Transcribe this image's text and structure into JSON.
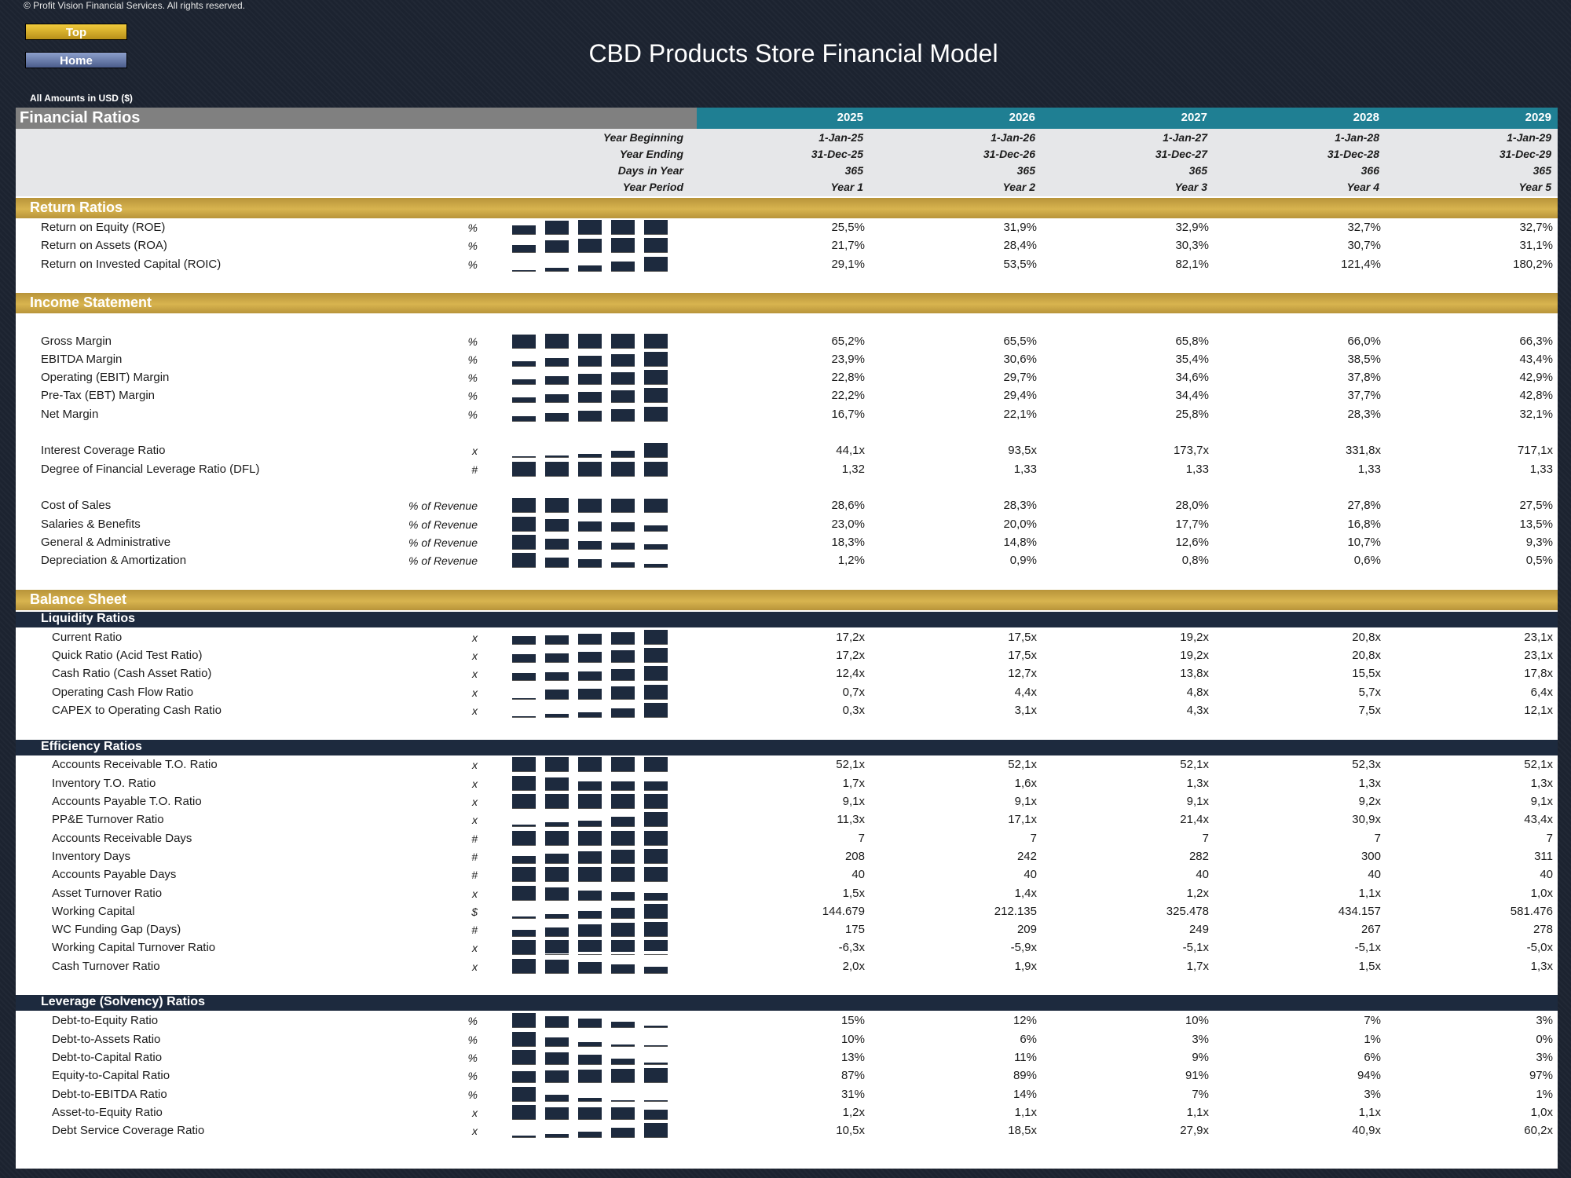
{
  "header": {
    "copyright": "© Profit Vision Financial Services. All rights reserved.",
    "top_button": "Top",
    "home_button": "Home",
    "title": "CBD Products Store Financial Model",
    "amounts": "All Amounts in  USD ($)"
  },
  "table": {
    "title": "Financial Ratios",
    "years": [
      "2025",
      "2026",
      "2027",
      "2028",
      "2029"
    ],
    "header_rows": [
      {
        "label": "Year Beginning",
        "values": [
          "1-Jan-25",
          "1-Jan-26",
          "1-Jan-27",
          "1-Jan-28",
          "1-Jan-29"
        ]
      },
      {
        "label": "Year Ending",
        "values": [
          "31-Dec-25",
          "31-Dec-26",
          "31-Dec-27",
          "31-Dec-28",
          "31-Dec-29"
        ]
      },
      {
        "label": "Days in Year",
        "values": [
          "365",
          "365",
          "365",
          "366",
          "365"
        ]
      },
      {
        "label": "Year Period",
        "values": [
          "Year 1",
          "Year 2",
          "Year 3",
          "Year 4",
          "Year 5"
        ]
      }
    ]
  },
  "sections": [
    {
      "type": "gold",
      "title": "Return Ratios"
    },
    {
      "type": "row",
      "label": "Return on Equity (ROE)",
      "unit": "%",
      "values": [
        "25,5%",
        "31,9%",
        "32,9%",
        "32,7%",
        "32,7%"
      ],
      "trend": [
        25.5,
        31.9,
        32.9,
        32.7,
        32.7
      ]
    },
    {
      "type": "row",
      "label": "Return on Assets (ROA)",
      "unit": "%",
      "values": [
        "21,7%",
        "28,4%",
        "30,3%",
        "30,7%",
        "31,1%"
      ],
      "trend": [
        21.7,
        28.4,
        30.3,
        30.7,
        31.1
      ]
    },
    {
      "type": "row",
      "label": "Return on Invested Capital (ROIC)",
      "unit": "%",
      "values": [
        "29,1%",
        "53,5%",
        "82,1%",
        "121,4%",
        "180,2%"
      ],
      "trend": [
        29.1,
        53.5,
        82.1,
        121.4,
        180.2
      ]
    },
    {
      "type": "gap"
    },
    {
      "type": "gold",
      "title": "Income Statement"
    },
    {
      "type": "gap"
    },
    {
      "type": "row",
      "label": "Gross Margin",
      "unit": "%",
      "values": [
        "65,2%",
        "65,5%",
        "65,8%",
        "66,0%",
        "66,3%"
      ],
      "trend": [
        65.2,
        65.5,
        65.8,
        66.0,
        66.3
      ]
    },
    {
      "type": "row",
      "label": "EBITDA Margin",
      "unit": "%",
      "values": [
        "23,9%",
        "30,6%",
        "35,4%",
        "38,5%",
        "43,4%"
      ],
      "trend": [
        23.9,
        30.6,
        35.4,
        38.5,
        43.4
      ]
    },
    {
      "type": "row",
      "label": "Operating (EBIT) Margin",
      "unit": "%",
      "values": [
        "22,8%",
        "29,7%",
        "34,6%",
        "37,8%",
        "42,9%"
      ],
      "trend": [
        22.8,
        29.7,
        34.6,
        37.8,
        42.9
      ]
    },
    {
      "type": "row",
      "label": "Pre-Tax (EBT) Margin",
      "unit": "%",
      "values": [
        "22,2%",
        "29,4%",
        "34,4%",
        "37,7%",
        "42,8%"
      ],
      "trend": [
        22.2,
        29.4,
        34.4,
        37.7,
        42.8
      ]
    },
    {
      "type": "row",
      "label": "Net Margin",
      "unit": "%",
      "values": [
        "16,7%",
        "22,1%",
        "25,8%",
        "28,3%",
        "32,1%"
      ],
      "trend": [
        16.7,
        22.1,
        25.8,
        28.3,
        32.1
      ]
    },
    {
      "type": "gap"
    },
    {
      "type": "row",
      "label": "Interest Coverage Ratio",
      "unit": "x",
      "values": [
        "44,1x",
        "93,5x",
        "173,7x",
        "331,8x",
        "717,1x"
      ],
      "trend": [
        44.1,
        93.5,
        173.7,
        331.8,
        717.1
      ]
    },
    {
      "type": "row",
      "label": "Degree of Financial Leverage Ratio (DFL)",
      "unit": "#",
      "values": [
        "1,32",
        "1,33",
        "1,33",
        "1,33",
        "1,33"
      ],
      "trend": [
        1.32,
        1.33,
        1.33,
        1.33,
        1.33
      ]
    },
    {
      "type": "gap"
    },
    {
      "type": "row",
      "label": "Cost of Sales",
      "unit": "% of Revenue",
      "values": [
        "28,6%",
        "28,3%",
        "28,0%",
        "27,8%",
        "27,5%"
      ],
      "trend": [
        28.6,
        28.3,
        28.0,
        27.8,
        27.5
      ]
    },
    {
      "type": "row",
      "label": "Salaries & Benefits",
      "unit": "% of Revenue",
      "values": [
        "23,0%",
        "20,0%",
        "17,7%",
        "16,8%",
        "13,5%"
      ],
      "trend": [
        23.0,
        20.0,
        17.7,
        16.8,
        13.5
      ]
    },
    {
      "type": "row",
      "label": "General & Administrative",
      "unit": "% of Revenue",
      "values": [
        "18,3%",
        "14,8%",
        "12,6%",
        "10,7%",
        "9,3%"
      ],
      "trend": [
        18.3,
        14.8,
        12.6,
        10.7,
        9.3
      ]
    },
    {
      "type": "row",
      "label": "Depreciation & Amortization",
      "unit": "% of Revenue",
      "values": [
        "1,2%",
        "0,9%",
        "0,8%",
        "0,6%",
        "0,5%"
      ],
      "trend": [
        1.2,
        0.9,
        0.8,
        0.6,
        0.5
      ]
    },
    {
      "type": "gap"
    },
    {
      "type": "gold",
      "title": "Balance Sheet"
    },
    {
      "type": "navy",
      "title": "Liquidity Ratios"
    },
    {
      "type": "row",
      "ind": true,
      "label": "Current Ratio",
      "unit": "x",
      "values": [
        "17,2x",
        "17,5x",
        "19,2x",
        "20,8x",
        "23,1x"
      ],
      "trend": [
        17.2,
        17.5,
        19.2,
        20.8,
        23.1
      ]
    },
    {
      "type": "row",
      "ind": true,
      "label": "Quick Ratio (Acid Test Ratio)",
      "unit": "x",
      "values": [
        "17,2x",
        "17,5x",
        "19,2x",
        "20,8x",
        "23,1x"
      ],
      "trend": [
        17.2,
        17.5,
        19.2,
        20.8,
        23.1
      ]
    },
    {
      "type": "row",
      "ind": true,
      "label": "Cash Ratio (Cash Asset Ratio)",
      "unit": "x",
      "values": [
        "12,4x",
        "12,7x",
        "13,8x",
        "15,5x",
        "17,8x"
      ],
      "trend": [
        12.4,
        12.7,
        13.8,
        15.5,
        17.8
      ]
    },
    {
      "type": "row",
      "ind": true,
      "label": "Operating Cash Flow Ratio",
      "unit": "x",
      "values": [
        "0,7x",
        "4,4x",
        "4,8x",
        "5,7x",
        "6,4x"
      ],
      "trend": [
        0.7,
        4.4,
        4.8,
        5.7,
        6.4
      ]
    },
    {
      "type": "row",
      "ind": true,
      "label": "CAPEX to Operating Cash Ratio",
      "unit": "x",
      "values": [
        "0,3x",
        "3,1x",
        "4,3x",
        "7,5x",
        "12,1x"
      ],
      "trend": [
        0.3,
        3.1,
        4.3,
        7.5,
        12.1
      ]
    },
    {
      "type": "gap"
    },
    {
      "type": "navy",
      "title": "Efficiency Ratios"
    },
    {
      "type": "row",
      "ind": true,
      "label": "Accounts Receivable T.O. Ratio",
      "unit": "x",
      "values": [
        "52,1x",
        "52,1x",
        "52,1x",
        "52,3x",
        "52,1x"
      ],
      "trend": [
        52.1,
        52.1,
        52.1,
        52.3,
        52.1
      ]
    },
    {
      "type": "row",
      "ind": true,
      "label": "Inventory T.O. Ratio",
      "unit": "x",
      "values": [
        "1,7x",
        "1,6x",
        "1,3x",
        "1,3x",
        "1,3x"
      ],
      "trend": [
        1.7,
        1.6,
        1.3,
        1.3,
        1.3
      ]
    },
    {
      "type": "row",
      "ind": true,
      "label": "Accounts Payable T.O. Ratio",
      "unit": "x",
      "values": [
        "9,1x",
        "9,1x",
        "9,1x",
        "9,2x",
        "9,1x"
      ],
      "trend": [
        9.1,
        9.1,
        9.1,
        9.2,
        9.1
      ]
    },
    {
      "type": "row",
      "ind": true,
      "label": "PP&E Turnover Ratio",
      "unit": "x",
      "values": [
        "11,3x",
        "17,1x",
        "21,4x",
        "30,9x",
        "43,4x"
      ],
      "trend": [
        11.3,
        17.1,
        21.4,
        30.9,
        43.4
      ]
    },
    {
      "type": "row",
      "ind": true,
      "label": "Accounts Receivable Days",
      "unit": "#",
      "values": [
        "7",
        "7",
        "7",
        "7",
        "7"
      ],
      "trend": [
        7,
        7,
        7,
        7,
        7
      ]
    },
    {
      "type": "row",
      "ind": true,
      "label": "Inventory Days",
      "unit": "#",
      "values": [
        "208",
        "242",
        "282",
        "300",
        "311"
      ],
      "trend": [
        208,
        242,
        282,
        300,
        311
      ]
    },
    {
      "type": "row",
      "ind": true,
      "label": "Accounts Payable Days",
      "unit": "#",
      "values": [
        "40",
        "40",
        "40",
        "40",
        "40"
      ],
      "trend": [
        40,
        40,
        40,
        40,
        40
      ]
    },
    {
      "type": "row",
      "ind": true,
      "label": "Asset Turnover Ratio",
      "unit": "x",
      "values": [
        "1,5x",
        "1,4x",
        "1,2x",
        "1,1x",
        "1,0x"
      ],
      "trend": [
        1.5,
        1.4,
        1.2,
        1.1,
        1.0
      ]
    },
    {
      "type": "row",
      "ind": true,
      "label": "Working Capital",
      "unit": "$",
      "values": [
        "144.679",
        "212.135",
        "325.478",
        "434.157",
        "581.476"
      ],
      "trend": [
        144679,
        212135,
        325478,
        434157,
        581476
      ]
    },
    {
      "type": "row",
      "ind": true,
      "label": "WC Funding Gap (Days)",
      "unit": "#",
      "values": [
        "175",
        "209",
        "249",
        "267",
        "278"
      ],
      "trend": [
        175,
        209,
        249,
        267,
        278
      ]
    },
    {
      "type": "row",
      "ind": true,
      "label": "Working Capital Turnover Ratio",
      "unit": "x",
      "values": [
        "-6,3x",
        "-5,9x",
        "-5,1x",
        "-5,1x",
        "-5,0x"
      ],
      "trend": [
        -6.3,
        -5.9,
        -5.1,
        -5.1,
        -5.0
      ]
    },
    {
      "type": "row",
      "ind": true,
      "label": "Cash Turnover Ratio",
      "unit": "x",
      "values": [
        "2,0x",
        "1,9x",
        "1,7x",
        "1,5x",
        "1,3x"
      ],
      "trend": [
        2.0,
        1.9,
        1.7,
        1.5,
        1.3
      ]
    },
    {
      "type": "gap"
    },
    {
      "type": "navy",
      "title": "Leverage (Solvency) Ratios"
    },
    {
      "type": "row",
      "ind": true,
      "label": "Debt-to-Equity Ratio",
      "unit": "%",
      "values": [
        "15%",
        "12%",
        "10%",
        "7%",
        "3%"
      ],
      "trend": [
        15,
        12,
        10,
        7,
        3
      ]
    },
    {
      "type": "row",
      "ind": true,
      "label": "Debt-to-Assets Ratio",
      "unit": "%",
      "values": [
        "10%",
        "6%",
        "3%",
        "1%",
        "0%"
      ],
      "trend": [
        10,
        6,
        3,
        1,
        0
      ]
    },
    {
      "type": "row",
      "ind": true,
      "label": "Debt-to-Capital Ratio",
      "unit": "%",
      "values": [
        "13%",
        "11%",
        "9%",
        "6%",
        "3%"
      ],
      "trend": [
        13,
        11,
        9,
        6,
        3
      ]
    },
    {
      "type": "row",
      "ind": true,
      "label": "Equity-to-Capital Ratio",
      "unit": "%",
      "values": [
        "87%",
        "89%",
        "91%",
        "94%",
        "97%"
      ],
      "trend": [
        87,
        89,
        91,
        94,
        97
      ]
    },
    {
      "type": "row",
      "ind": true,
      "label": "Debt-to-EBITDA Ratio",
      "unit": "%",
      "values": [
        "31%",
        "14%",
        "7%",
        "3%",
        "1%"
      ],
      "trend": [
        31,
        14,
        7,
        3,
        1
      ]
    },
    {
      "type": "row",
      "ind": true,
      "label": "Asset-to-Equity Ratio",
      "unit": "x",
      "values": [
        "1,2x",
        "1,1x",
        "1,1x",
        "1,1x",
        "1,0x"
      ],
      "trend": [
        1.2,
        1.1,
        1.1,
        1.1,
        1.0
      ]
    },
    {
      "type": "row",
      "ind": true,
      "label": "Debt Service Coverage Ratio",
      "unit": "x",
      "values": [
        "10,5x",
        "18,5x",
        "27,9x",
        "40,9x",
        "60,2x"
      ],
      "trend": [
        10.5,
        18.5,
        27.9,
        40.9,
        60.2
      ]
    }
  ]
}
